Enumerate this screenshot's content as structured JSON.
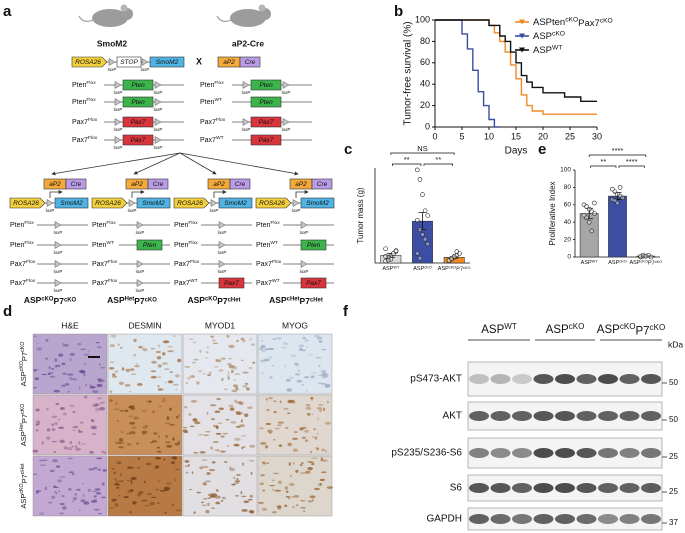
{
  "panel_labels": [
    "a",
    "b",
    "c",
    "d",
    "e",
    "f"
  ],
  "panel_a": {
    "mouse_labels": [
      "SmoM2",
      "aP2-Cre"
    ],
    "cross": "X",
    "rosa": "ROSA26",
    "stop": "STOP",
    "smo": "SmoM2",
    "loxp": "loxP",
    "promoter": "aP2",
    "cre": "Cre",
    "parents": [
      {
        "rows": [
          {
            "allele": [
              "Pten",
              "Flox"
            ],
            "state": "flox",
            "gene": "Pten",
            "color": "#3cb44b"
          },
          {
            "allele": [
              "Pten",
              "Flox"
            ],
            "state": "flox",
            "gene": "Pten",
            "color": "#3cb44b"
          },
          {
            "allele": [
              "Pax7",
              "Flox"
            ],
            "state": "flox",
            "gene": "Pax7",
            "color": "#d8343c"
          },
          {
            "allele": [
              "Pax7",
              "Flox"
            ],
            "state": "flox",
            "gene": "Pax7",
            "color": "#d8343c"
          }
        ]
      },
      {
        "rows": [
          {
            "allele": [
              "Pten",
              "Flox"
            ],
            "state": "flox",
            "gene": "Pten",
            "color": "#3cb44b"
          },
          {
            "allele": [
              "Pten",
              "WT"
            ],
            "state": "wt",
            "gene": "Pten",
            "color": "#3cb44b"
          },
          {
            "allele": [
              "Pax7",
              "Flox"
            ],
            "state": "flox",
            "gene": "Pax7",
            "color": "#d8343c"
          },
          {
            "allele": [
              "Pax7",
              "WT"
            ],
            "state": "wt",
            "gene": "Pax7",
            "color": "#d8343c"
          }
        ]
      }
    ],
    "offspring": [
      {
        "rows": [
          {
            "allele": [
              "Pten",
              "Flox"
            ],
            "state": "deleted"
          },
          {
            "allele": [
              "Pten",
              "Flox"
            ],
            "state": "deleted"
          },
          {
            "allele": [
              "Pax7",
              "Flox"
            ],
            "state": "deleted"
          },
          {
            "allele": [
              "Pax7",
              "Flox"
            ],
            "state": "deleted"
          }
        ],
        "genotype": [
          "ASP",
          "cKO",
          "P7",
          "cKO"
        ]
      },
      {
        "rows": [
          {
            "allele": [
              "Pten",
              "Flox"
            ],
            "state": "deleted"
          },
          {
            "allele": [
              "Pten",
              "WT"
            ],
            "state": "wt",
            "gene": "Pten",
            "color": "#3cb44b"
          },
          {
            "allele": [
              "Pax7",
              "Flox"
            ],
            "state": "deleted"
          },
          {
            "allele": [
              "Pax7",
              "Flox"
            ],
            "state": "deleted"
          }
        ],
        "genotype": [
          "ASP",
          "Het",
          "P7",
          "cKO"
        ]
      },
      {
        "rows": [
          {
            "allele": [
              "Pten",
              "Flox"
            ],
            "state": "deleted"
          },
          {
            "allele": [
              "Pten",
              "Flox"
            ],
            "state": "deleted"
          },
          {
            "allele": [
              "Pax7",
              "Flox"
            ],
            "state": "deleted"
          },
          {
            "allele": [
              "Pax7",
              "WT"
            ],
            "state": "wt",
            "gene": "Pax7",
            "color": "#d8343c"
          }
        ],
        "genotype": [
          "ASP",
          "cKO",
          "P7",
          "cHet"
        ]
      },
      {
        "rows": [
          {
            "allele": [
              "Pten",
              "Flox"
            ],
            "state": "deleted"
          },
          {
            "allele": [
              "Pten",
              "WT"
            ],
            "state": "wt",
            "gene": "Pten",
            "color": "#3cb44b"
          },
          {
            "allele": [
              "Pax7",
              "Flox"
            ],
            "state": "deleted"
          },
          {
            "allele": [
              "Pax7",
              "WT"
            ],
            "state": "wt",
            "gene": "Pax7",
            "color": "#d8343c"
          }
        ],
        "genotype": [
          "ASP",
          "cHet",
          "P7",
          "cHet"
        ]
      }
    ]
  },
  "chart_data": [
    {
      "type": "line",
      "ylabel": "Tumor-free survival (%)",
      "xlabel": "Days",
      "xlim": [
        0,
        30
      ],
      "ylim": [
        0,
        100
      ],
      "xticks": [
        0,
        5,
        10,
        15,
        20,
        25,
        30
      ],
      "yticks": [
        0,
        20,
        40,
        60,
        80,
        100
      ],
      "legend": "upper right",
      "series": [
        {
          "name": [
            "ASPten",
            "cKO",
            "Pax7",
            "cKO"
          ],
          "color": "#f08a24",
          "x": [
            0,
            10,
            10,
            11,
            11,
            12,
            12,
            13,
            13,
            14,
            14,
            15,
            15,
            16,
            16,
            17,
            17,
            18,
            18,
            20,
            20,
            30
          ],
          "values": [
            100,
            100,
            95,
            95,
            88,
            88,
            80,
            80,
            70,
            70,
            58,
            58,
            45,
            45,
            30,
            30,
            20,
            20,
            15,
            15,
            12,
            12
          ]
        },
        {
          "name": [
            "ASP",
            "cKO"
          ],
          "color": "#3b4ea3",
          "x": [
            0,
            5,
            5,
            6,
            6,
            7,
            7,
            8,
            8,
            9,
            9,
            10,
            10,
            11,
            11,
            12
          ],
          "values": [
            100,
            100,
            87,
            87,
            73,
            73,
            53,
            53,
            33,
            33,
            20,
            20,
            7,
            7,
            0,
            0
          ]
        },
        {
          "name": [
            "ASP",
            "WT"
          ],
          "color": "#111111",
          "x": [
            0,
            10,
            10,
            12,
            12,
            13,
            13,
            14,
            14,
            15,
            15,
            16,
            16,
            17,
            17,
            18,
            18,
            20,
            20,
            24,
            24,
            27,
            27,
            30
          ],
          "values": [
            100,
            100,
            95,
            95,
            85,
            85,
            80,
            80,
            70,
            70,
            60,
            60,
            48,
            48,
            42,
            42,
            37,
            37,
            32,
            32,
            28,
            28,
            24,
            24
          ]
        }
      ]
    },
    {
      "type": "dot_bar",
      "ylabel": "Tumor mass (g)",
      "ylim": [
        0,
        1
      ],
      "categories": [
        [
          "ASP",
          "WT"
        ],
        [
          "ASP",
          "cKO"
        ],
        [
          "ASP",
          "cKO",
          "P7",
          "cKO"
        ]
      ],
      "values": [
        0.08,
        0.44,
        0.06
      ],
      "errors": [
        0.02,
        0.09,
        0.01
      ],
      "colors": [
        "#d9d9d9",
        "#3b4ea3",
        "#f08a24"
      ],
      "points": [
        [
          0.02,
          0.05,
          0.08,
          0.1,
          0.12,
          0.15,
          0.06,
          0.04,
          0.1,
          0.13,
          0.07,
          0.03
        ],
        [
          0.98,
          0.88,
          0.72,
          0.55,
          0.5,
          0.45,
          0.35,
          0.3,
          0.25,
          0.2,
          0.1,
          0.05
        ],
        [
          0.02,
          0.04,
          0.06,
          0.08,
          0.1,
          0.03,
          0.05,
          0.07,
          0.12
        ]
      ],
      "comparisons": [
        {
          "groups": [
            0,
            2
          ],
          "label": "NS"
        },
        {
          "groups": [
            0,
            1
          ],
          "label": "**"
        },
        {
          "groups": [
            1,
            2
          ],
          "label": "**"
        }
      ]
    },
    {
      "type": "dot_bar",
      "ylabel": "Proliferative Index",
      "ylim": [
        0,
        100
      ],
      "yticks": [
        0,
        20,
        40,
        60,
        80,
        100
      ],
      "categories": [
        [
          "ASP",
          "WT"
        ],
        [
          "ASP",
          "cKO"
        ],
        [
          "ASP",
          "cKO",
          "P7",
          "cKO"
        ]
      ],
      "values": [
        50,
        70,
        1
      ],
      "errors": [
        6,
        4,
        0.5
      ],
      "colors": [
        "#a6a6a6",
        "#3b4ea3",
        "#f08a24"
      ],
      "points": [
        [
          60,
          58,
          55,
          52,
          50,
          48,
          45,
          40,
          30,
          62
        ],
        [
          78,
          75,
          72,
          70,
          68,
          66,
          65,
          62,
          80
        ],
        [
          0,
          1,
          1,
          2,
          0,
          1,
          2,
          1
        ]
      ],
      "comparisons": [
        {
          "groups": [
            0,
            2
          ],
          "label": "****"
        },
        {
          "groups": [
            0,
            1
          ],
          "label": "**"
        },
        {
          "groups": [
            1,
            2
          ],
          "label": "****"
        }
      ]
    }
  ],
  "panel_d": {
    "columns": [
      "H&E",
      "DESMIN",
      "MYOD1",
      "MYOG"
    ],
    "rows": [
      [
        "ASP",
        "cKO",
        "P7",
        "cKO"
      ],
      [
        "ASP",
        "Het",
        "P7",
        "cKO"
      ],
      [
        "ASP",
        "cKO",
        "P7",
        "cHet"
      ]
    ]
  },
  "panel_f": {
    "groups": [
      [
        "ASP",
        "WT"
      ],
      [
        "ASP",
        "cKO"
      ],
      [
        "ASP",
        "cKO",
        "P7",
        "cKO"
      ]
    ],
    "unit": "kDa",
    "blots": [
      {
        "label": "pS473-AKT",
        "marker": 50
      },
      {
        "label": "AKT",
        "marker": 50
      },
      {
        "label": "pS235/S236-S6",
        "marker": 25
      },
      {
        "label": "S6",
        "marker": 25
      },
      {
        "label": "GAPDH",
        "marker": 37
      }
    ]
  }
}
